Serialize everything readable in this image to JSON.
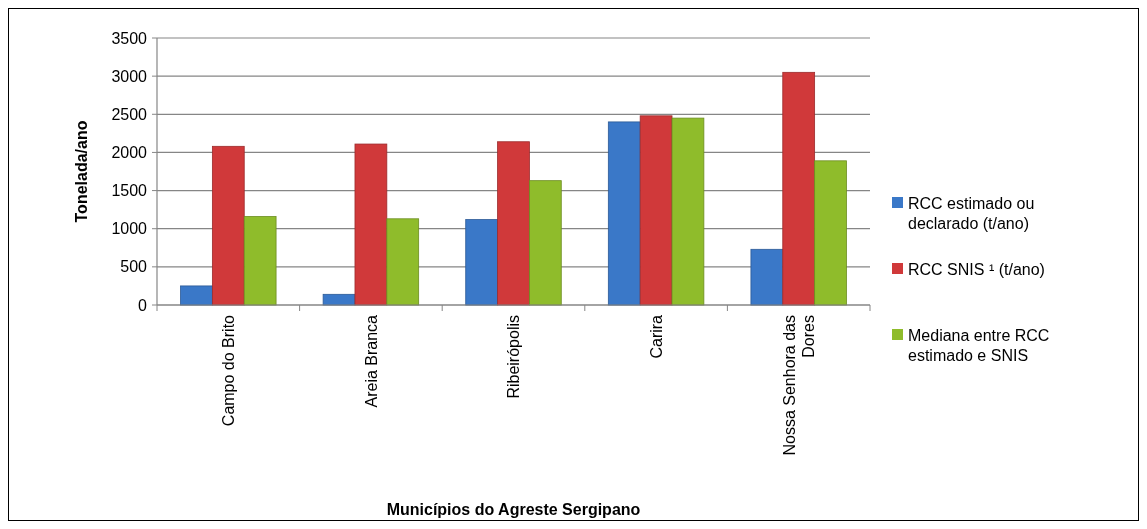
{
  "chart_data": {
    "type": "bar",
    "xlabel": "Municípios do Agreste Sergipano",
    "ylabel": "Tonelada/ano",
    "categories": [
      "Campo do Brito",
      "Areia Branca",
      "Ribeirópolis",
      "Carira",
      "Nossa Senhora das Dores"
    ],
    "series": [
      {
        "name": "RCC estimado ou declarado (t/ano)",
        "color": "#3a78c8",
        "values": [
          250,
          140,
          1120,
          2400,
          730
        ]
      },
      {
        "name": "RCC SNIS ¹ (t/ano)",
        "color": "#d0393a",
        "values": [
          2080,
          2110,
          2140,
          2480,
          3050
        ]
      },
      {
        "name": "Mediana entre RCC estimado e SNIS",
        "color": "#8fbc2b",
        "values": [
          1160,
          1130,
          1630,
          2450,
          1890
        ]
      }
    ],
    "ylim": [
      0,
      3500
    ],
    "yticks": [
      0,
      500,
      1000,
      1500,
      2000,
      2500,
      3000,
      3500
    ],
    "grid": "y",
    "legend": "right"
  }
}
